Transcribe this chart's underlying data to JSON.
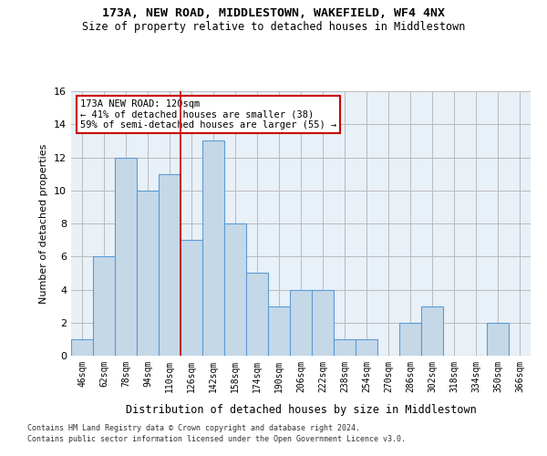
{
  "title1": "173A, NEW ROAD, MIDDLESTOWN, WAKEFIELD, WF4 4NX",
  "title2": "Size of property relative to detached houses in Middlestown",
  "xlabel": "Distribution of detached houses by size in Middlestown",
  "ylabel": "Number of detached properties",
  "categories": [
    "46sqm",
    "62sqm",
    "78sqm",
    "94sqm",
    "110sqm",
    "126sqm",
    "142sqm",
    "158sqm",
    "174sqm",
    "190sqm",
    "206sqm",
    "222sqm",
    "238sqm",
    "254sqm",
    "270sqm",
    "286sqm",
    "302sqm",
    "318sqm",
    "334sqm",
    "350sqm",
    "366sqm"
  ],
  "values": [
    1,
    6,
    12,
    10,
    11,
    7,
    13,
    8,
    5,
    3,
    4,
    4,
    1,
    1,
    0,
    2,
    3,
    0,
    0,
    2,
    0
  ],
  "bar_color": "#c5d8e8",
  "bar_edge_color": "#5b9bd5",
  "bar_edge_width": 0.8,
  "grid_color": "#bbbbbb",
  "background_color": "#e8f0f8",
  "annotation_text": "173A NEW ROAD: 120sqm\n← 41% of detached houses are smaller (38)\n59% of semi-detached houses are larger (55) →",
  "annotation_box_color": "#ffffff",
  "annotation_box_edge": "#cc0000",
  "vline_x": 4.5,
  "vline_color": "#cc0000",
  "ylim": [
    0,
    16
  ],
  "yticks": [
    0,
    2,
    4,
    6,
    8,
    10,
    12,
    14,
    16
  ],
  "footer1": "Contains HM Land Registry data © Crown copyright and database right 2024.",
  "footer2": "Contains public sector information licensed under the Open Government Licence v3.0."
}
